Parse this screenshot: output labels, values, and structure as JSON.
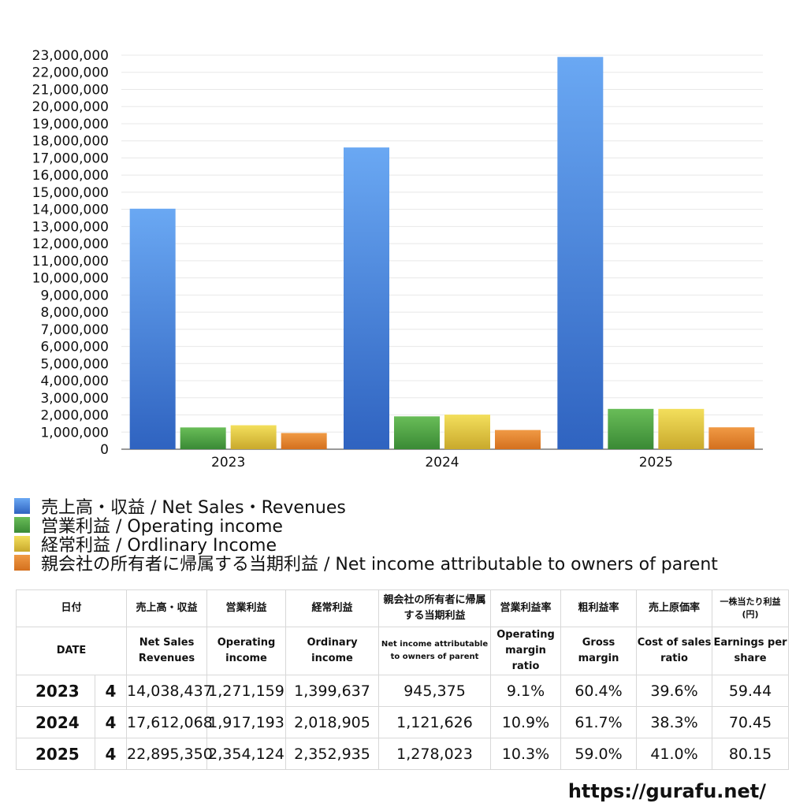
{
  "chart_data": {
    "type": "bar",
    "categories": [
      "2023",
      "2024",
      "2025"
    ],
    "series": [
      {
        "name": "売上高・収益 / Net Sales・Revenues",
        "values": [
          14038437,
          17612068,
          22895350
        ],
        "color_top": "#6aa8f3",
        "color_bottom": "#2f63c0"
      },
      {
        "name": "営業利益 / Operating income",
        "values": [
          1271159,
          1917193,
          2354124
        ],
        "color_top": "#69bd58",
        "color_bottom": "#3a8a35"
      },
      {
        "name": "経常利益 / Ordlinary Income",
        "values": [
          1399637,
          2018905,
          2352935
        ],
        "color_top": "#f3df5c",
        "color_bottom": "#c9a92c"
      },
      {
        "name": "親会社の所有者に帰属する当期利益 / Net income attributable to owners of parent",
        "values": [
          945375,
          1121626,
          1278023
        ],
        "color_top": "#f09a45",
        "color_bottom": "#d4701e"
      }
    ],
    "ylim": [
      0,
      23000000
    ],
    "yticks": [
      "0",
      "1,000,000",
      "2,000,000",
      "3,000,000",
      "4,000,000",
      "5,000,000",
      "6,000,000",
      "7,000,000",
      "8,000,000",
      "9,000,000",
      "10,000,000",
      "11,000,000",
      "12,000,000",
      "13,000,000",
      "14,000,000",
      "15,000,000",
      "16,000,000",
      "17,000,000",
      "18,000,000",
      "19,000,000",
      "20,000,000",
      "21,000,000",
      "22,000,000",
      "23,000,000"
    ],
    "grid": true,
    "legend_position": "bottom"
  },
  "table": {
    "header_jp": {
      "date": "日付",
      "sales": "売上高・収益",
      "op": "営業利益",
      "ord": "経常利益",
      "net": "親会社の所有者に帰属する当期利益",
      "opm": "営業利益率",
      "gross": "粗利益率",
      "cost": "売上原価率",
      "eps": "一株当たり利益(円)"
    },
    "header_en": {
      "date": "DATE",
      "sales": "Net Sales Revenues",
      "op": "Operating income",
      "ord": "Ordinary income",
      "net": "Net income attributable to owners of parent",
      "opm": "Operating margin ratio",
      "gross": "Gross margin",
      "cost": "Cost of sales ratio",
      "eps": "Earnings per share"
    },
    "rows": [
      {
        "year": "2023",
        "count": "4",
        "sales": "14,038,437",
        "op": "1,271,159",
        "ord": "1,399,637",
        "net": "945,375",
        "opm": "9.1%",
        "gross": "60.4%",
        "cost": "39.6%",
        "eps": "59.44"
      },
      {
        "year": "2024",
        "count": "4",
        "sales": "17,612,068",
        "op": "1,917,193",
        "ord": "2,018,905",
        "net": "1,121,626",
        "opm": "10.9%",
        "gross": "61.7%",
        "cost": "38.3%",
        "eps": "70.45"
      },
      {
        "year": "2025",
        "count": "4",
        "sales": "22,895,350",
        "op": "2,354,124",
        "ord": "2,352,935",
        "net": "1,278,023",
        "opm": "10.3%",
        "gross": "59.0%",
        "cost": "41.0%",
        "eps": "80.15"
      }
    ]
  },
  "footer": {
    "url": "https://gurafu.net/"
  }
}
